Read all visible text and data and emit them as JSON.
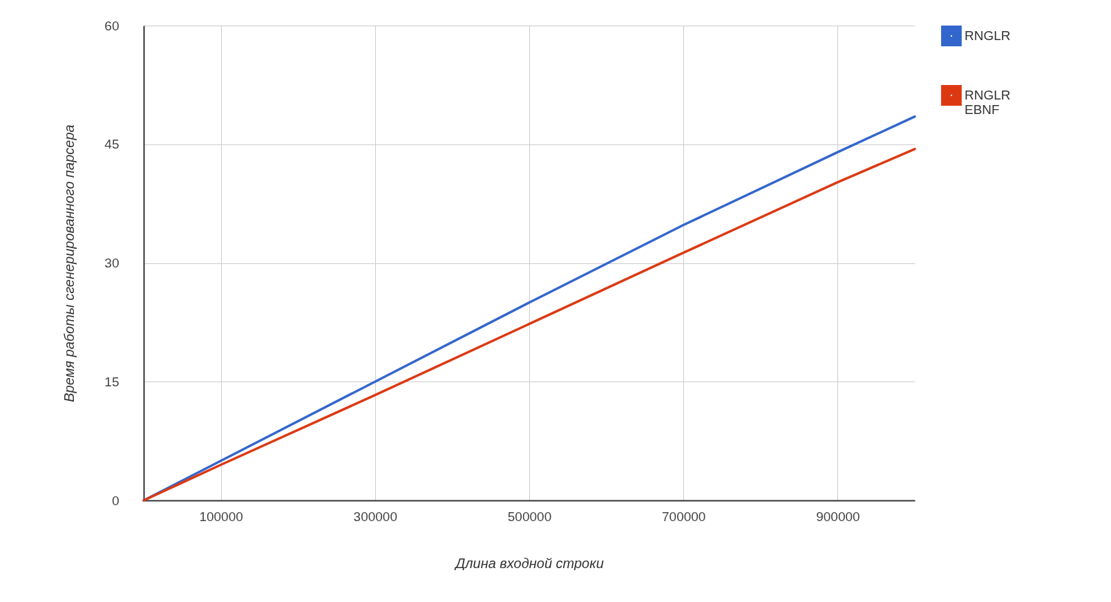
{
  "chart_data": {
    "type": "line",
    "xlabel": "Длина входной строки",
    "ylabel": "Время работы сгенерированного парсера",
    "x": [
      0,
      100000,
      300000,
      500000,
      700000,
      900000,
      1000000
    ],
    "series": [
      {
        "name": "RNGLR",
        "color": "#3366cc",
        "values": [
          0,
          5,
          15,
          25,
          34.8,
          44,
          48.5
        ]
      },
      {
        "name": "RNGLR EBNF",
        "color": "#dc3912",
        "values": [
          0,
          4.5,
          13.3,
          22.3,
          31.3,
          40.2,
          44.4
        ]
      }
    ],
    "xlim": [
      0,
      1000000
    ],
    "xticks": [
      100000,
      300000,
      500000,
      700000,
      900000
    ],
    "ylim": [
      0,
      60
    ],
    "yticks": [
      0,
      15,
      30,
      45,
      60
    ],
    "grid": true,
    "legend": "top right",
    "marker": "none",
    "line_style": "solid"
  }
}
